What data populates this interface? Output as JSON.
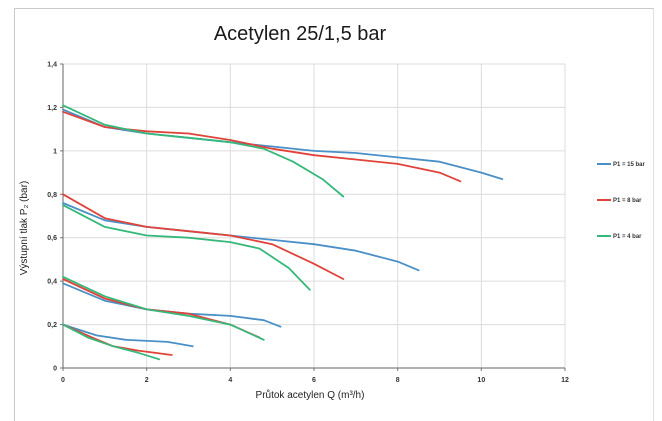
{
  "chart_data": {
    "type": "line",
    "title": "Acetylen 25/1,5 bar",
    "xlabel": "Průtok acetylen Q (m³/h)",
    "ylabel": "Výstupní tlak P₂ (bar)",
    "xlim": [
      0,
      12
    ],
    "ylim": [
      0,
      1.4
    ],
    "xticks": [
      "0",
      "2",
      "4",
      "6",
      "8",
      "10",
      "12"
    ],
    "yticks": [
      "0",
      "0,2",
      "0,4",
      "0,6",
      "0,8",
      "1",
      "1,2",
      "1,4"
    ],
    "grid": true,
    "legend_position": "right",
    "series": [
      {
        "name": "P1 = 15 bar",
        "color": "#4a90c8",
        "lines": [
          [
            [
              0,
              1.19
            ],
            [
              1,
              1.11
            ],
            [
              2,
              1.08
            ],
            [
              3,
              1.06
            ],
            [
              4,
              1.04
            ],
            [
              5,
              1.02
            ],
            [
              6,
              1.0
            ],
            [
              7,
              0.99
            ],
            [
              8,
              0.97
            ],
            [
              9,
              0.95
            ],
            [
              10,
              0.9
            ],
            [
              10.5,
              0.87
            ]
          ],
          [
            [
              0,
              0.76
            ],
            [
              1,
              0.68
            ],
            [
              2,
              0.65
            ],
            [
              3,
              0.63
            ],
            [
              4,
              0.61
            ],
            [
              5,
              0.59
            ],
            [
              6,
              0.57
            ],
            [
              7,
              0.54
            ],
            [
              8,
              0.49
            ],
            [
              8.5,
              0.45
            ]
          ],
          [
            [
              0,
              0.39
            ],
            [
              1,
              0.31
            ],
            [
              2,
              0.27
            ],
            [
              3,
              0.25
            ],
            [
              4,
              0.24
            ],
            [
              4.8,
              0.22
            ],
            [
              5.2,
              0.19
            ]
          ],
          [
            [
              0,
              0.2
            ],
            [
              0.8,
              0.15
            ],
            [
              1.5,
              0.13
            ],
            [
              2.5,
              0.12
            ],
            [
              3.1,
              0.1
            ]
          ]
        ]
      },
      {
        "name": "P1 = 8 bar",
        "color": "#e0433a",
        "lines": [
          [
            [
              0,
              1.18
            ],
            [
              1,
              1.11
            ],
            [
              2,
              1.09
            ],
            [
              3,
              1.08
            ],
            [
              4,
              1.05
            ],
            [
              5,
              1.01
            ],
            [
              6,
              0.98
            ],
            [
              7,
              0.96
            ],
            [
              8,
              0.94
            ],
            [
              9,
              0.9
            ],
            [
              9.5,
              0.86
            ]
          ],
          [
            [
              0,
              0.8
            ],
            [
              1,
              0.69
            ],
            [
              2,
              0.65
            ],
            [
              3,
              0.63
            ],
            [
              4,
              0.61
            ],
            [
              5,
              0.57
            ],
            [
              6,
              0.48
            ],
            [
              6.7,
              0.41
            ]
          ],
          [
            [
              0,
              0.41
            ],
            [
              1,
              0.32
            ],
            [
              2,
              0.27
            ],
            [
              3,
              0.25
            ],
            [
              4,
              0.2
            ],
            [
              4.7,
              0.14
            ]
          ],
          [
            [
              0,
              0.2
            ],
            [
              0.7,
              0.14
            ],
            [
              1.2,
              0.1
            ],
            [
              1.8,
              0.08
            ],
            [
              2.6,
              0.06
            ]
          ]
        ]
      },
      {
        "name": "P1 = 4 bar",
        "color": "#35b87a",
        "lines": [
          [
            [
              0,
              1.21
            ],
            [
              1,
              1.12
            ],
            [
              2,
              1.08
            ],
            [
              3,
              1.06
            ],
            [
              4,
              1.04
            ],
            [
              4.8,
              1.01
            ],
            [
              5.5,
              0.95
            ],
            [
              6.2,
              0.87
            ],
            [
              6.7,
              0.79
            ]
          ],
          [
            [
              0,
              0.75
            ],
            [
              1,
              0.65
            ],
            [
              2,
              0.61
            ],
            [
              3,
              0.6
            ],
            [
              4,
              0.58
            ],
            [
              4.7,
              0.55
            ],
            [
              5.4,
              0.46
            ],
            [
              5.9,
              0.36
            ]
          ],
          [
            [
              0,
              0.42
            ],
            [
              1,
              0.33
            ],
            [
              2,
              0.27
            ],
            [
              3,
              0.24
            ],
            [
              4,
              0.2
            ],
            [
              4.8,
              0.13
            ]
          ],
          [
            [
              0,
              0.2
            ],
            [
              0.6,
              0.14
            ],
            [
              1.2,
              0.1
            ],
            [
              1.8,
              0.07
            ],
            [
              2.3,
              0.04
            ]
          ]
        ]
      }
    ]
  }
}
